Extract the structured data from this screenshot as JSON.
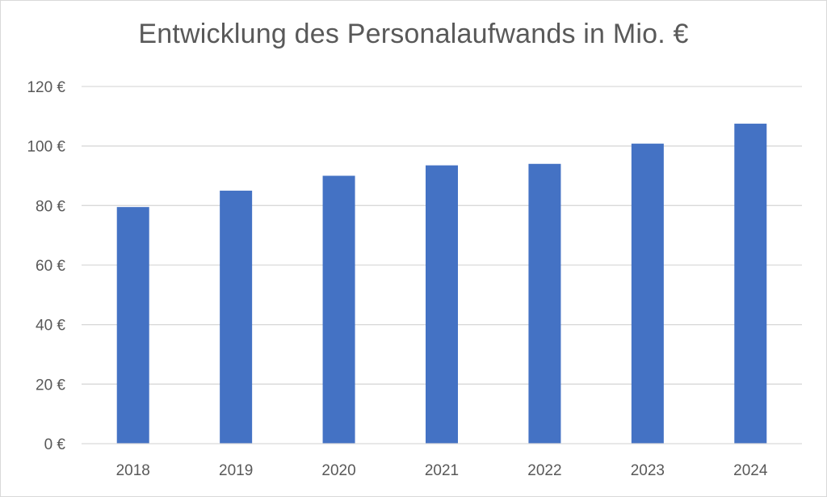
{
  "chart_data": {
    "type": "bar",
    "title": "Entwicklung des Personalaufwands in Mio. €",
    "xlabel": "",
    "ylabel": "",
    "categories": [
      "2018",
      "2019",
      "2020",
      "2021",
      "2022",
      "2023",
      "2024"
    ],
    "values": [
      79.5,
      85,
      90,
      93.5,
      94,
      100.8,
      107.5
    ],
    "ylim": [
      0,
      120
    ],
    "yticks": [
      0,
      20,
      40,
      60,
      80,
      100,
      120
    ],
    "ytick_labels": [
      "0 €",
      "20 €",
      "40 €",
      "60 €",
      "80 €",
      "100 €",
      "120 €"
    ],
    "grid": true,
    "legend": "none",
    "bar_color": "#4472C4",
    "grid_color": "#d9d9d9"
  }
}
